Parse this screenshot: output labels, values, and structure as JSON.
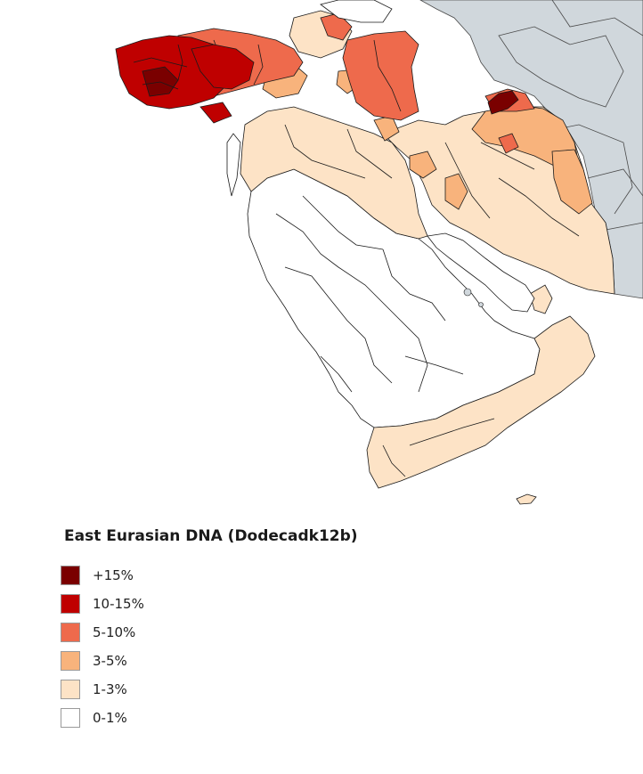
{
  "legend": {
    "title": "East Eurasian DNA (Dodecadk12b)",
    "items": [
      {
        "label": "+15%",
        "color": "#7a0000"
      },
      {
        "label": "10-15%",
        "color": "#bf0000"
      },
      {
        "label": "5-10%",
        "color": "#ee6a4c"
      },
      {
        "label": "3-5%",
        "color": "#f8b37c"
      },
      {
        "label": "1-3%",
        "color": "#fde3c6"
      },
      {
        "label": "0-1%",
        "color": "#ffffff"
      }
    ]
  },
  "map": {
    "colors": {
      "background_land": "#d0d7dc",
      "sea": "#ffffff",
      "border": "#1a1a1a"
    }
  }
}
